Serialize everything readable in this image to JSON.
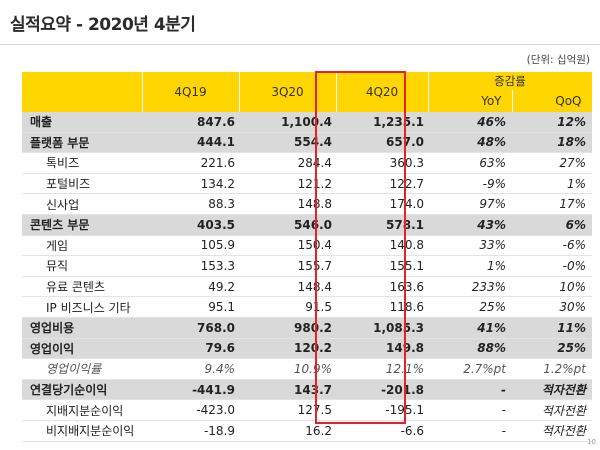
{
  "title": "실적요약 - 2020년 4분기",
  "unit": "(단위: 십억원)",
  "page_number": "10",
  "highlight_color": "#e8202a",
  "header_color": "#ffd600",
  "columns": {
    "q1": "4Q19",
    "q2": "3Q20",
    "q3": "4Q20",
    "growth": "증감률",
    "yoy": "YoY",
    "qoq": "QoQ"
  },
  "rows": [
    {
      "label": "매출",
      "type": "major",
      "v": [
        "847.6",
        "1,100.4",
        "1,235.1"
      ],
      "yoy": "46%",
      "qoq": "12%"
    },
    {
      "label": "플랫폼 부문",
      "type": "major",
      "v": [
        "444.1",
        "554.4",
        "657.0"
      ],
      "yoy": "48%",
      "qoq": "18%"
    },
    {
      "label": "톡비즈",
      "type": "sub",
      "v": [
        "221.6",
        "284.4",
        "360.3"
      ],
      "yoy": "63%",
      "qoq": "27%"
    },
    {
      "label": "포털비즈",
      "type": "sub",
      "v": [
        "134.2",
        "121.2",
        "122.7"
      ],
      "yoy": "-9%",
      "qoq": "1%"
    },
    {
      "label": "신사업",
      "type": "sub",
      "v": [
        "88.3",
        "148.8",
        "174.0"
      ],
      "yoy": "97%",
      "qoq": "17%"
    },
    {
      "label": "콘텐츠 부문",
      "type": "major",
      "v": [
        "403.5",
        "546.0",
        "578.1"
      ],
      "yoy": "43%",
      "qoq": "6%"
    },
    {
      "label": "게임",
      "type": "sub",
      "v": [
        "105.9",
        "150.4",
        "140.8"
      ],
      "yoy": "33%",
      "qoq": "-6%"
    },
    {
      "label": "뮤직",
      "type": "sub",
      "v": [
        "153.3",
        "155.7",
        "155.1"
      ],
      "yoy": "1%",
      "qoq": "-0%"
    },
    {
      "label": "유료 콘텐츠",
      "type": "sub",
      "v": [
        "49.2",
        "148.4",
        "163.6"
      ],
      "yoy": "233%",
      "qoq": "10%"
    },
    {
      "label": "IP 비즈니스 기타",
      "type": "sub",
      "v": [
        "95.1",
        "91.5",
        "118.6"
      ],
      "yoy": "25%",
      "qoq": "30%"
    },
    {
      "label": "영업비용",
      "type": "major",
      "v": [
        "768.0",
        "980.2",
        "1,085.3"
      ],
      "yoy": "41%",
      "qoq": "11%"
    },
    {
      "label": "영업이익",
      "type": "major",
      "v": [
        "79.6",
        "120.2",
        "149.8"
      ],
      "yoy": "88%",
      "qoq": "25%"
    },
    {
      "label": "영업이익률",
      "type": "margin",
      "v": [
        "9.4%",
        "10.9%",
        "12.1%"
      ],
      "yoy": "2.7%pt",
      "qoq": "1.2%pt"
    },
    {
      "label": "연결당기순이익",
      "type": "major",
      "v": [
        "-441.9",
        "143.7",
        "-201.8"
      ],
      "yoy": "-",
      "qoq": "적자전환"
    },
    {
      "label": "지배지분순이익",
      "type": "sub",
      "v": [
        "-423.0",
        "127.5",
        "-195.1"
      ],
      "yoy": "-",
      "qoq": "적자전환"
    },
    {
      "label": "비지배지분순이익",
      "type": "sub",
      "v": [
        "-18.9",
        "16.2",
        "-6.6"
      ],
      "yoy": "-",
      "qoq": "적자전환"
    }
  ]
}
